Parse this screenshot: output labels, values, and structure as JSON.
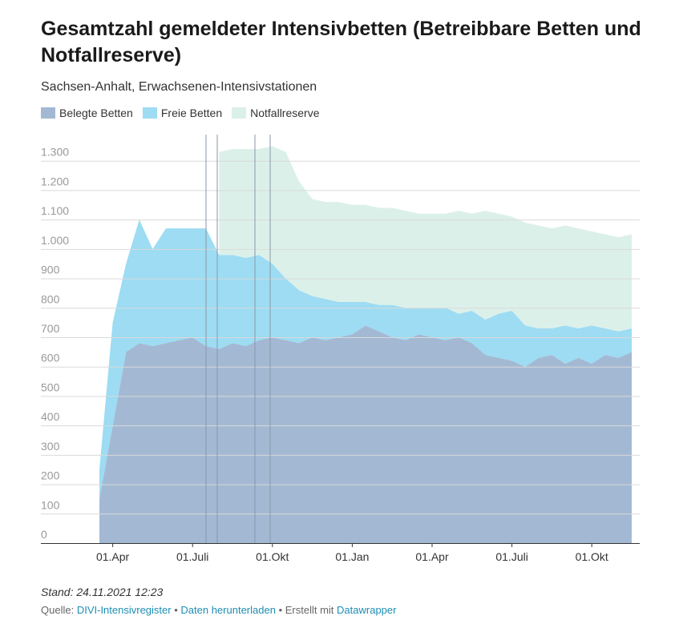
{
  "chart_data": {
    "type": "stacked-area",
    "title": "Gesamtzahl gemeldeter Intensivbetten (Betreibbare Betten und Notfallreserve)",
    "subtitle": "Sachsen-Anhalt, Erwachsenen-Intensivstationen",
    "categories": [
      null,
      "01.Apr",
      null,
      null,
      null,
      null,
      null,
      "01.Juli",
      null,
      null,
      null,
      null,
      null,
      "01.Okt",
      null,
      null,
      null,
      null,
      null,
      "01.Jan",
      null,
      null,
      null,
      null,
      null,
      "01.Apr",
      null,
      null,
      null,
      null,
      null,
      "01.Juli",
      null,
      null,
      null,
      null,
      null,
      "01.Okt",
      null,
      null,
      null
    ],
    "series": [
      {
        "name": "Belegte Betten",
        "color": "#a3b9d3",
        "values": [
          150,
          400,
          650,
          680,
          670,
          680,
          690,
          700,
          670,
          660,
          680,
          670,
          690,
          700,
          690,
          680,
          700,
          690,
          700,
          710,
          740,
          720,
          700,
          690,
          710,
          700,
          690,
          700,
          680,
          640,
          630,
          620,
          600,
          630,
          640,
          610,
          630,
          610,
          640,
          630,
          650
        ]
      },
      {
        "name": "Freie Betten",
        "color": "#9ddcf3",
        "values": [
          100,
          350,
          300,
          420,
          330,
          390,
          380,
          370,
          400,
          320,
          300,
          300,
          290,
          250,
          210,
          180,
          140,
          140,
          120,
          110,
          80,
          90,
          110,
          110,
          90,
          100,
          110,
          80,
          110,
          120,
          150,
          170,
          140,
          100,
          90,
          130,
          100,
          130,
          90,
          90,
          80
        ]
      },
      {
        "name": "Notfallreserve",
        "color": "#dcf0ea",
        "values": [
          null,
          null,
          null,
          null,
          null,
          null,
          null,
          null,
          null,
          350,
          360,
          370,
          360,
          400,
          430,
          370,
          330,
          330,
          340,
          330,
          330,
          330,
          330,
          330,
          320,
          320,
          320,
          350,
          330,
          370,
          340,
          320,
          350,
          350,
          340,
          340,
          340,
          320,
          320,
          320,
          320
        ]
      }
    ],
    "ylim": [
      0,
      1400
    ],
    "yticks": [
      0,
      100,
      200,
      300,
      400,
      500,
      600,
      700,
      800,
      900,
      {
        "value": 1000,
        "label": "1.000"
      },
      {
        "value": 1100,
        "label": "1.100"
      },
      {
        "value": 1200,
        "label": "1.200"
      },
      {
        "value": 1300,
        "label": "1.300"
      }
    ],
    "grid": true,
    "note": "Stand: 24.11.2021 12:23",
    "source_label": "Quelle:",
    "source": "DIVI-Intensivregister",
    "download": "Daten herunterladen",
    "credit_label": "Erstellt mit",
    "credit": "Datawrapper"
  }
}
